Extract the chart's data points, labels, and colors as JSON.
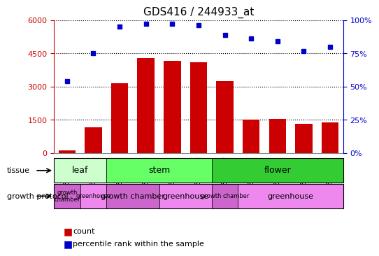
{
  "title": "GDS416 / 244933_at",
  "samples": [
    "GSM9223",
    "GSM9224",
    "GSM9225",
    "GSM9226",
    "GSM9227",
    "GSM9228",
    "GSM9229",
    "GSM9230",
    "GSM9231",
    "GSM9232",
    "GSM9233"
  ],
  "bar_values": [
    120,
    1180,
    3150,
    4280,
    4150,
    4100,
    3250,
    1500,
    1560,
    1330,
    1380
  ],
  "percentiles": [
    54,
    75,
    95,
    97,
    97,
    96,
    89,
    86,
    84,
    77,
    80
  ],
  "ylim_left": [
    0,
    6000
  ],
  "ylim_right": [
    0,
    100
  ],
  "yticks_left": [
    0,
    1500,
    3000,
    4500,
    6000
  ],
  "yticks_right": [
    0,
    25,
    50,
    75,
    100
  ],
  "bar_color": "#cc0000",
  "dot_color": "#0000cc",
  "tissue_groups": [
    {
      "label": "leaf",
      "start": 0,
      "end": 1,
      "color": "#ccffcc"
    },
    {
      "label": "stem",
      "start": 2,
      "end": 5,
      "color": "#66ff66"
    },
    {
      "label": "flower",
      "start": 6,
      "end": 10,
      "color": "#33cc33"
    }
  ],
  "protocol_groups": [
    {
      "label": "growth\nchamber",
      "start": 0,
      "end": 0,
      "color": "#cc66cc"
    },
    {
      "label": "greenhouse",
      "start": 1,
      "end": 1,
      "color": "#ee88ee"
    },
    {
      "label": "growth chamber",
      "start": 2,
      "end": 3,
      "color": "#cc66cc"
    },
    {
      "label": "greenhouse",
      "start": 4,
      "end": 5,
      "color": "#ee88ee"
    },
    {
      "label": "growth chamber",
      "start": 6,
      "end": 6,
      "color": "#cc66cc"
    },
    {
      "label": "greenhouse",
      "start": 7,
      "end": 10,
      "color": "#ee88ee"
    }
  ],
  "left_axis_color": "#cc0000",
  "right_axis_color": "#0000cc",
  "grid_color": "#000000",
  "tissue_label": "tissue",
  "protocol_label": "growth protocol"
}
